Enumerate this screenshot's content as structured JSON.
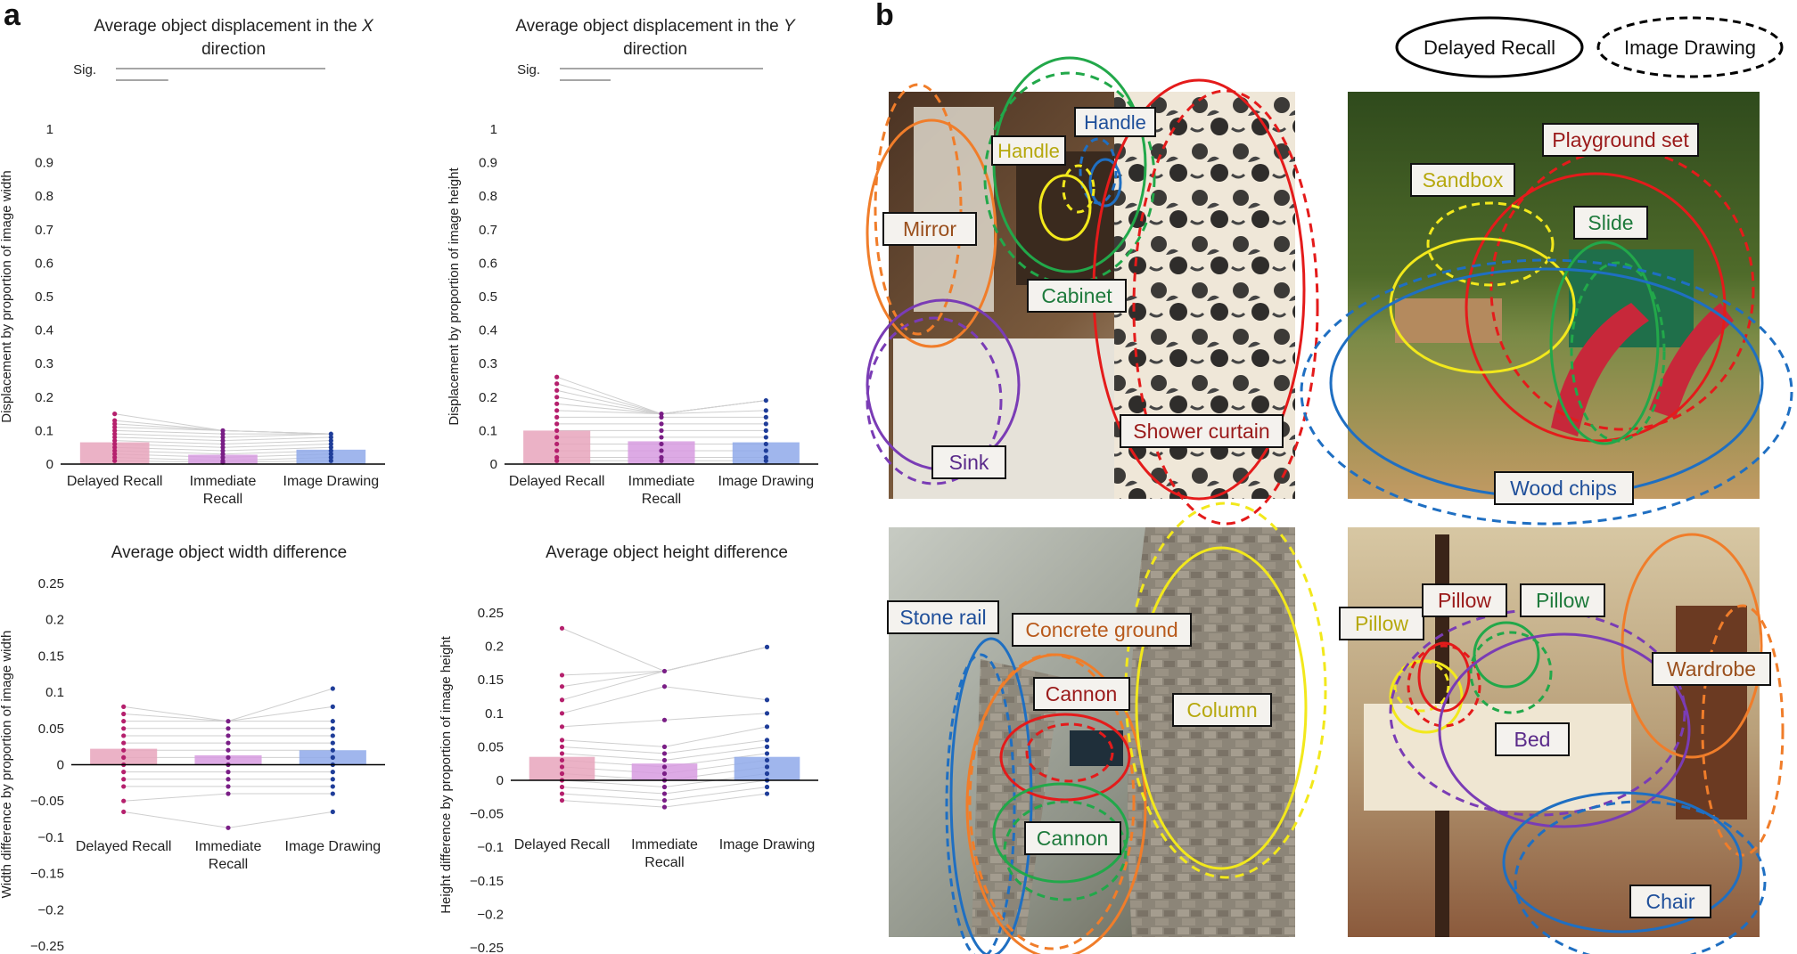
{
  "panel_labels": [
    "a",
    "b"
  ],
  "legend": {
    "solid": "Delayed Recall",
    "dashed": "Image Drawing"
  },
  "sig_label": "Sig.",
  "chart_data": [
    {
      "type": "bar",
      "title": "Average object displacement in the X direction",
      "title_lines": [
        "Average object displacement in the ",
        "X",
        " direction"
      ],
      "ylabel": "Displacement by proportion of image width",
      "ylim": [
        0,
        1
      ],
      "yticks": [
        0,
        0.1,
        0.2,
        0.3,
        0.4,
        0.5,
        0.6,
        0.7,
        0.8,
        0.9,
        1
      ],
      "ytick_labels": [
        "0",
        "0.1",
        "0.2",
        "0.3",
        "0.4",
        "0.5",
        "0.6",
        "0.7",
        "0.8",
        "0.9",
        "1"
      ],
      "categories": [
        "Delayed Recall",
        "Immediate Recall",
        "Image Drawing"
      ],
      "category_lines": [
        [
          "Delayed Recall"
        ],
        [
          "Immediate",
          "Recall"
        ],
        [
          "Image Drawing"
        ]
      ],
      "values": [
        0.065,
        0.028,
        0.043
      ],
      "colors": [
        "#e8a4bc",
        "#d79be0",
        "#8fa9ea"
      ],
      "point_colors": [
        "#b5206d",
        "#7a1e86",
        "#1f3d99"
      ],
      "points": [
        [
          0.01,
          0.02,
          0.03,
          0.04,
          0.05,
          0.06,
          0.07,
          0.08,
          0.09,
          0.1,
          0.11,
          0.12,
          0.13,
          0.15
        ],
        [
          0.005,
          0.01,
          0.02,
          0.03,
          0.04,
          0.05,
          0.06,
          0.07,
          0.08,
          0.09,
          0.1
        ],
        [
          0.01,
          0.02,
          0.03,
          0.04,
          0.05,
          0.06,
          0.07,
          0.08,
          0.09
        ]
      ],
      "sig": [
        [
          0,
          2
        ],
        [
          0,
          1
        ]
      ]
    },
    {
      "type": "bar",
      "title": "Average object displacement in the Y direction",
      "title_lines": [
        "Average object displacement in the ",
        "Y",
        " direction"
      ],
      "ylabel": "Displacement by proportion of image height",
      "ylim": [
        0,
        1
      ],
      "yticks": [
        0,
        0.1,
        0.2,
        0.3,
        0.4,
        0.5,
        0.6,
        0.7,
        0.8,
        0.9,
        1
      ],
      "ytick_labels": [
        "0",
        "0.1",
        "0.2",
        "0.3",
        "0.4",
        "0.5",
        "0.6",
        "0.7",
        "0.8",
        "0.9",
        "1"
      ],
      "categories": [
        "Delayed Recall",
        "Immediate Recall",
        "Image Drawing"
      ],
      "category_lines": [
        [
          "Delayed Recall"
        ],
        [
          "Immediate",
          "Recall"
        ],
        [
          "Image Drawing"
        ]
      ],
      "values": [
        0.1,
        0.068,
        0.065
      ],
      "colors": [
        "#e8a4bc",
        "#d79be0",
        "#8fa9ea"
      ],
      "point_colors": [
        "#b5206d",
        "#7a1e86",
        "#1f3d99"
      ],
      "points": [
        [
          0.01,
          0.02,
          0.04,
          0.06,
          0.08,
          0.1,
          0.12,
          0.14,
          0.16,
          0.18,
          0.2,
          0.22,
          0.24,
          0.26
        ],
        [
          0.01,
          0.02,
          0.04,
          0.06,
          0.08,
          0.1,
          0.12,
          0.14,
          0.15
        ],
        [
          0.01,
          0.02,
          0.04,
          0.06,
          0.08,
          0.1,
          0.12,
          0.14,
          0.16,
          0.19
        ]
      ],
      "sig": [
        [
          0,
          2
        ],
        [
          0,
          1
        ]
      ]
    },
    {
      "type": "bar",
      "title": "Average object width difference",
      "title_lines": [
        "Average object width difference"
      ],
      "ylabel": "Width difference by proportion of image width",
      "ylim": [
        -0.25,
        0.25
      ],
      "yticks": [
        -0.25,
        -0.2,
        -0.15,
        -0.1,
        -0.05,
        0,
        0.05,
        0.1,
        0.15,
        0.2,
        0.25
      ],
      "ytick_labels": [
        "−0.25",
        "−0.2",
        "−0.15",
        "−0.1",
        "−0.05",
        "0",
        "0.05",
        "0.1",
        "0.15",
        "0.2",
        "0.25"
      ],
      "categories": [
        "Delayed Recall",
        "Immediate Recall",
        "Image Drawing"
      ],
      "category_lines": [
        [
          "Delayed Recall"
        ],
        [
          "Immediate",
          "Recall"
        ],
        [
          "Image Drawing"
        ]
      ],
      "values": [
        0.022,
        0.013,
        0.02
      ],
      "colors": [
        "#e8a4bc",
        "#d79be0",
        "#8fa9ea"
      ],
      "point_colors": [
        "#b5206d",
        "#7a1e86",
        "#1f3d99"
      ],
      "points": [
        [
          -0.065,
          -0.05,
          -0.03,
          -0.02,
          -0.01,
          0,
          0.01,
          0.02,
          0.03,
          0.04,
          0.05,
          0.06,
          0.07,
          0.08
        ],
        [
          -0.087,
          -0.04,
          -0.03,
          -0.02,
          -0.01,
          0,
          0.01,
          0.02,
          0.03,
          0.04,
          0.05,
          0.06
        ],
        [
          -0.065,
          -0.04,
          -0.03,
          -0.02,
          -0.01,
          0,
          0.01,
          0.02,
          0.03,
          0.04,
          0.05,
          0.06,
          0.08,
          0.105
        ]
      ],
      "sig": []
    },
    {
      "type": "bar",
      "title": "Average object height difference",
      "title_lines": [
        "Average object height difference"
      ],
      "ylabel": "Height difference by proportion of image height",
      "ylim": [
        -0.25,
        0.25
      ],
      "yticks": [
        -0.25,
        -0.2,
        -0.15,
        -0.1,
        -0.05,
        0,
        0.05,
        0.1,
        0.15,
        0.2,
        0.25
      ],
      "ytick_labels": [
        "−0.25",
        "−0.2",
        "−0.15",
        "−0.1",
        "−0.05",
        "0",
        "0.05",
        "0.1",
        "0.15",
        "0.2",
        "0.25"
      ],
      "categories": [
        "Delayed Recall",
        "Immediate Recall",
        "Image Drawing"
      ],
      "category_lines": [
        [
          "Delayed Recall"
        ],
        [
          "Immediate",
          "Recall"
        ],
        [
          "Image Drawing"
        ]
      ],
      "values": [
        0.035,
        0.025,
        0.035
      ],
      "colors": [
        "#e8a4bc",
        "#d79be0",
        "#8fa9ea"
      ],
      "point_colors": [
        "#b5206d",
        "#7a1e86",
        "#1f3d99"
      ],
      "points": [
        [
          -0.03,
          -0.02,
          -0.01,
          0,
          0.01,
          0.02,
          0.03,
          0.04,
          0.05,
          0.06,
          0.08,
          0.1,
          0.12,
          0.14,
          0.157,
          0.227
        ],
        [
          -0.04,
          -0.03,
          -0.02,
          -0.01,
          0,
          0.01,
          0.02,
          0.03,
          0.04,
          0.05,
          0.09,
          0.14,
          0.163
        ],
        [
          -0.02,
          -0.01,
          0,
          0.01,
          0.02,
          0.03,
          0.04,
          0.05,
          0.06,
          0.08,
          0.1,
          0.12,
          0.199
        ]
      ],
      "sig": []
    }
  ],
  "scene_labels": [
    [
      "Handle",
      "Handle",
      "Mirror",
      "Cabinet",
      "Sink",
      "Shower curtain"
    ],
    [
      "Playground set",
      "Sandbox",
      "Slide",
      "Wood chips"
    ],
    [
      "Stone rail",
      "Concrete ground",
      "Cannon",
      "Column",
      "Cannon"
    ],
    [
      "Pillow",
      "Pillow",
      "Pillow",
      "Wardrobe",
      "Bed",
      "Chair"
    ]
  ],
  "object_colors": {
    "orange": "#f07d2a",
    "green": "#22a84a",
    "blue": "#1f6fc2",
    "yellow": "#f2e81c",
    "red": "#e41b1b",
    "purple": "#7a3cb5"
  }
}
